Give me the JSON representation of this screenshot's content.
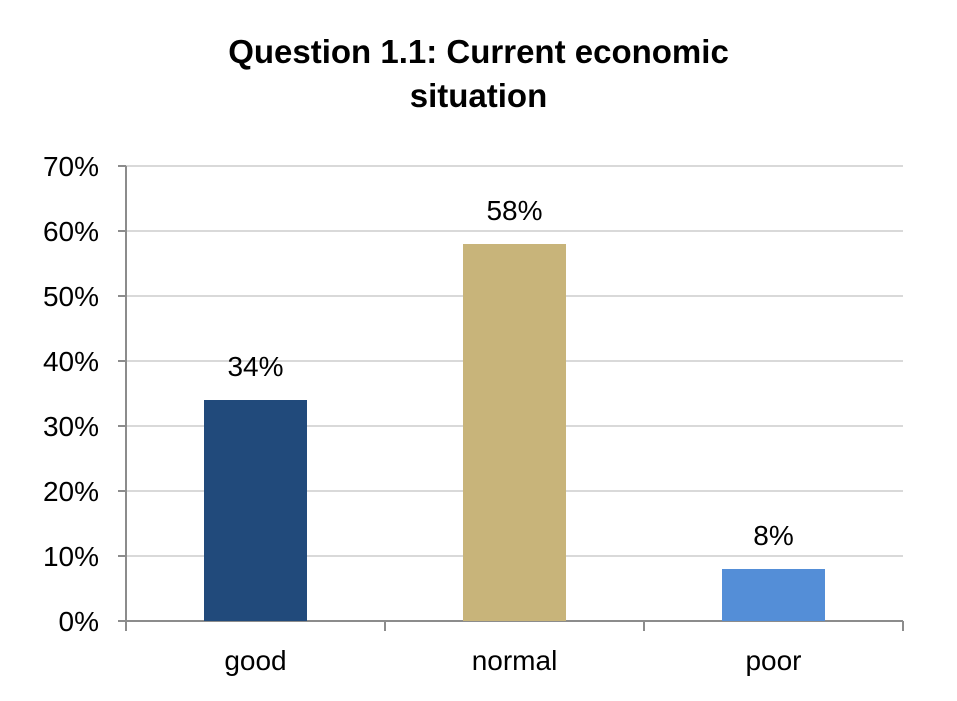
{
  "chart_data": {
    "type": "bar",
    "title_line1": "Question 1.1: Current economic",
    "title_line2": "situation",
    "categories": [
      "good",
      "normal",
      "poor"
    ],
    "values": [
      34,
      58,
      8
    ],
    "value_labels": [
      "34%",
      "58%",
      "8%"
    ],
    "bar_colors": [
      "#214a7b",
      "#c8b47a",
      "#548ed7"
    ],
    "ylim": [
      0,
      70
    ],
    "yticks": [
      0,
      10,
      20,
      30,
      40,
      50,
      60,
      70
    ],
    "ytick_labels": [
      "0%",
      "10%",
      "20%",
      "30%",
      "40%",
      "50%",
      "60%",
      "70%"
    ],
    "grid": true,
    "legend": "none"
  }
}
